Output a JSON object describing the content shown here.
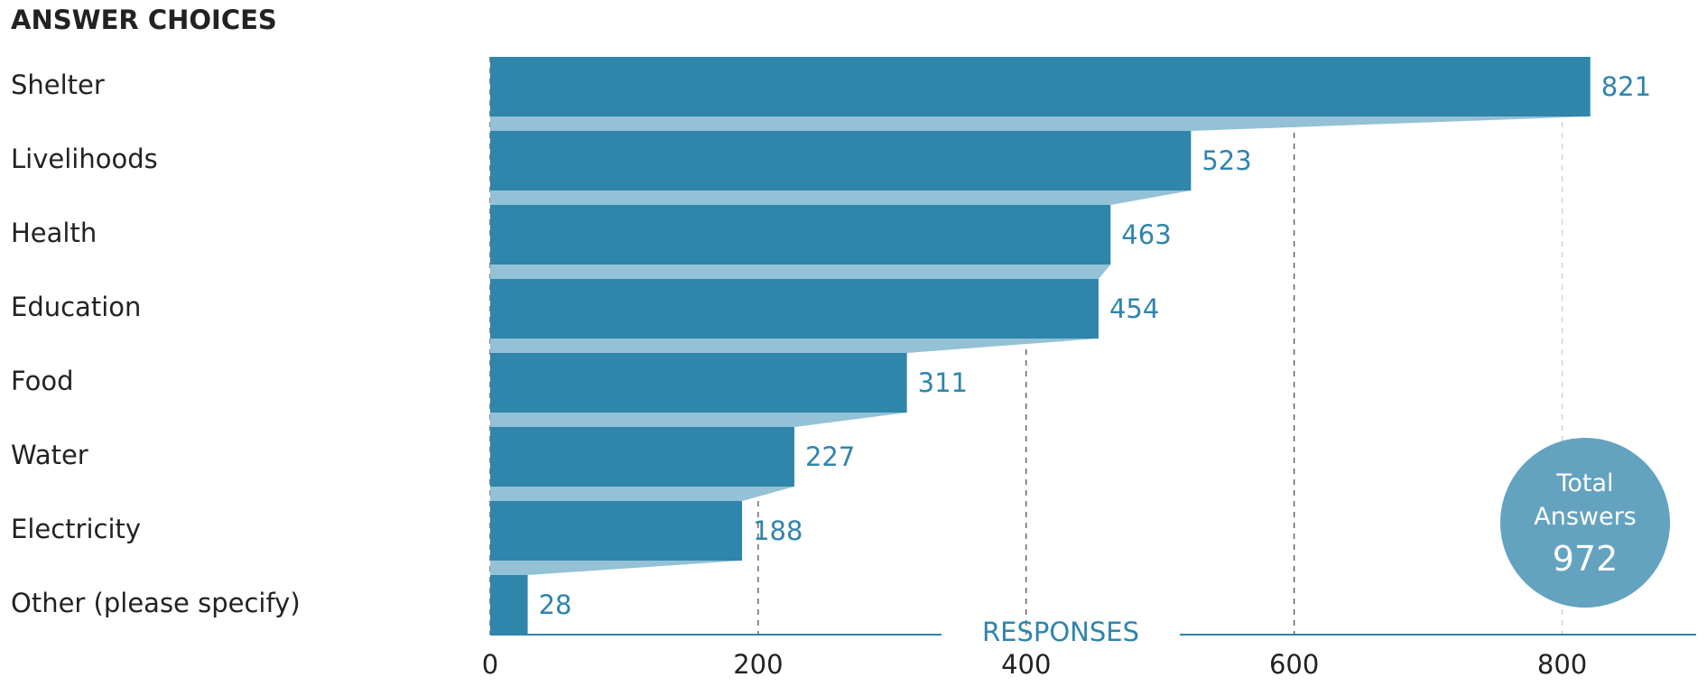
{
  "chart_data": {
    "type": "bar",
    "orientation": "horizontal",
    "title": "ANSWER CHOICES",
    "x_label": "RESPONSES",
    "categories": [
      "Shelter",
      "Livelihoods",
      "Health",
      "Education",
      "Food",
      "Water",
      "Electricity",
      "Other (please specify)"
    ],
    "values": [
      821,
      523,
      463,
      454,
      311,
      227,
      188,
      28
    ],
    "color": "#3085ab",
    "connector_color": "#93c1d6",
    "label_color": "#2f84ad",
    "xlim": [
      0,
      900
    ],
    "xticks": [
      0,
      200,
      400,
      600,
      800
    ],
    "grid": true,
    "total_label": "Total Answers",
    "total_value": 972
  }
}
